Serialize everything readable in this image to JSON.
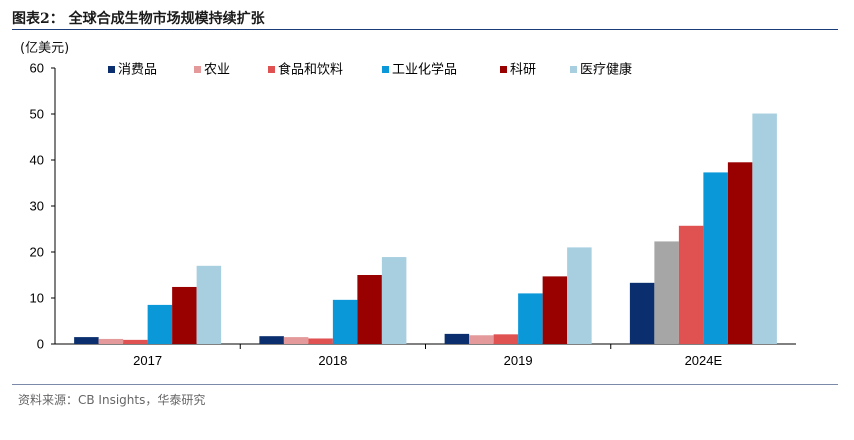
{
  "title": "图表2：  全球合成生物市场规模持续扩张",
  "source": "资料来源：CB Insights，华泰研究",
  "chart_data": {
    "type": "bar",
    "title": "",
    "ylabel": "(亿美元)",
    "xlabel": "",
    "ylim": [
      0,
      60
    ],
    "yticks": [
      0,
      10,
      20,
      30,
      40,
      50,
      60
    ],
    "grid": false,
    "legend": "top",
    "categories": [
      "2017",
      "2018",
      "2019",
      "2024E"
    ],
    "series": [
      {
        "name": "消费品",
        "color": "#0b2f6e",
        "values": [
          1.5,
          1.7,
          2.2,
          13.3
        ]
      },
      {
        "name": "农业",
        "color": "#e49a9a",
        "values": [
          1.1,
          1.5,
          1.9,
          22.3
        ]
      },
      {
        "name": "食品和饮料",
        "color": "#e05252",
        "values": [
          0.9,
          1.2,
          2.1,
          25.7
        ]
      },
      {
        "name": "工业化学品",
        "color": "#0a98d8",
        "values": [
          8.5,
          9.6,
          11.0,
          37.3
        ]
      },
      {
        "name": "科研",
        "color": "#990000",
        "values": [
          12.4,
          15.0,
          14.7,
          39.5
        ]
      },
      {
        "name": "医疗健康",
        "color": "#a7cfe0",
        "values": [
          17.0,
          18.9,
          21.0,
          50.1
        ]
      }
    ],
    "special_bar": {
      "category_index": 3,
      "series_index": 1,
      "color": "#a6a6a6"
    }
  }
}
